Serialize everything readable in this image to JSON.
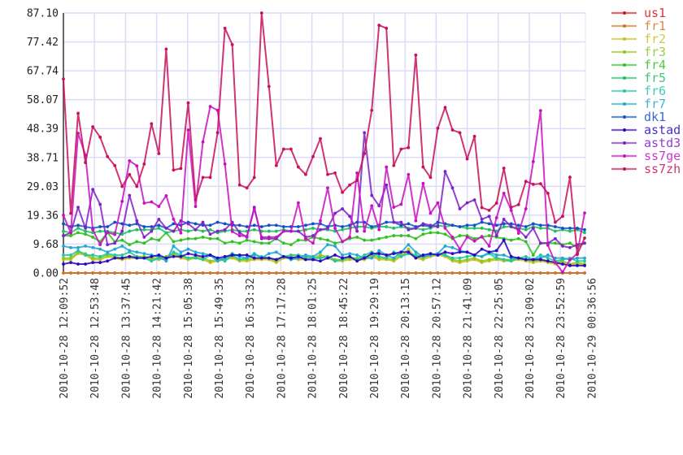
{
  "chart_data": {
    "type": "line",
    "title": "",
    "xlabel": "",
    "ylabel": "",
    "ylim": [
      0,
      87.1
    ],
    "y_ticks": [
      "0.00",
      "9.68",
      "19.36",
      "29.03",
      "38.71",
      "48.39",
      "58.07",
      "67.74",
      "77.42",
      "87.10"
    ],
    "x_tick_labels": [
      "2010-10-28 12:09:52",
      "2010-10-28 12:53:48",
      "2010-10-28 13:37:45",
      "2010-10-28 14:21:42",
      "2010-10-28 15:05:38",
      "2010-10-28 15:49:35",
      "2010-10-28 16:33:32",
      "2010-10-28 17:17:28",
      "2010-10-28 18:01:25",
      "2010-10-28 18:45:22",
      "2010-10-28 19:29:19",
      "2010-10-28 20:13:15",
      "2010-10-28 20:57:12",
      "2010-10-28 21:41:09",
      "2010-10-28 22:25:05",
      "2010-10-28 23:09:02",
      "2010-10-28 23:52:59",
      "2010-10-29 00:36:56"
    ],
    "grid": true,
    "legend_position": "right",
    "series": [
      {
        "name": "us1",
        "color": "#d01818",
        "values": [
          0,
          0,
          0,
          0,
          0,
          0,
          0,
          0,
          0,
          0,
          0,
          0,
          0,
          0,
          0,
          0,
          0,
          0,
          0,
          0,
          0,
          0,
          0,
          0,
          0,
          0,
          0,
          0,
          0,
          0,
          0,
          0,
          0,
          0,
          0,
          0,
          0,
          0,
          0,
          0,
          0,
          0,
          0,
          0,
          0,
          0,
          0,
          0,
          0,
          0,
          0,
          0,
          0,
          0,
          0,
          0,
          0,
          0,
          0,
          0,
          0,
          0,
          0,
          0,
          0,
          0,
          0,
          0,
          0,
          0,
          0,
          0
        ]
      },
      {
        "name": "fr1",
        "color": "#d07828",
        "values": [
          0,
          0,
          0,
          0,
          0,
          0,
          0,
          0,
          0,
          0,
          0,
          0,
          0,
          0,
          0,
          0,
          0,
          0,
          0,
          0,
          0,
          0,
          0,
          0,
          0,
          0,
          0,
          0,
          0,
          0,
          0,
          0,
          0,
          0,
          0,
          0,
          0,
          0,
          0,
          0,
          0,
          0,
          0,
          0,
          0,
          0,
          0,
          0,
          0,
          0,
          0,
          0,
          0,
          0,
          0,
          0,
          0,
          0,
          0,
          0,
          0,
          0,
          0,
          0,
          0,
          0,
          0,
          0,
          0,
          0,
          0,
          0
        ]
      },
      {
        "name": "fr2",
        "color": "#c8c020",
        "values": [
          4.5,
          4.5,
          6.5,
          6,
          4.5,
          4.5,
          5.5,
          5,
          4.5,
          5,
          5,
          5,
          4.5,
          4.5,
          5,
          6,
          5,
          4.5,
          5,
          4.5,
          3.5,
          4,
          4.5,
          5,
          4,
          4,
          4.5,
          4.5,
          4.5,
          3.5,
          5,
          5,
          4.5,
          4.5,
          4.5,
          5.5,
          5,
          4,
          4,
          4.5,
          4.5,
          4.5,
          5.5,
          4.5,
          4.5,
          4,
          5.5,
          8,
          5,
          4.5,
          5.5,
          6,
          5.5,
          4,
          3.5,
          4,
          4.5,
          3.5,
          4,
          4.5,
          4,
          4,
          4.5,
          4,
          3.5,
          4,
          3.5,
          3,
          3.5,
          2.5,
          3,
          2.5
        ]
      },
      {
        "name": "fr3",
        "color": "#88c820",
        "values": [
          5,
          5,
          7,
          6.5,
          5,
          5,
          6,
          5.5,
          5,
          5.5,
          5.5,
          5.5,
          5,
          5,
          5.5,
          6.5,
          5.5,
          5,
          5.5,
          5,
          4,
          4.5,
          5,
          5.5,
          4.5,
          4.5,
          5,
          5,
          5,
          4,
          5.5,
          5.5,
          5,
          5,
          5,
          6,
          5.5,
          4.5,
          4.5,
          5,
          5,
          5,
          6,
          5,
          5,
          4.5,
          6,
          6.5,
          5.5,
          5,
          6,
          6.5,
          6,
          4.5,
          4,
          4.5,
          5,
          4,
          4.5,
          5,
          4.5,
          4.5,
          5,
          4.5,
          4,
          4.5,
          4,
          3.5,
          4,
          3,
          3.5,
          3
        ]
      },
      {
        "name": "fr4",
        "color": "#30c020",
        "values": [
          12.5,
          12.5,
          13.5,
          13,
          12,
          10.5,
          13.5,
          10.5,
          11,
          9.5,
          10.5,
          10,
          11.5,
          11,
          13.5,
          10.5,
          11,
          11.5,
          11.5,
          12,
          11.5,
          11.5,
          10,
          10.5,
          10,
          11,
          10.5,
          10,
          10,
          11.5,
          10,
          9.5,
          11,
          11,
          12,
          11.5,
          11,
          10,
          10.5,
          11.5,
          12,
          11,
          11,
          11.5,
          12,
          12.5,
          12.5,
          12.5,
          11.5,
          13,
          13.5,
          13.5,
          13,
          11.5,
          12.5,
          12.5,
          11.5,
          12,
          12.5,
          12,
          11.5,
          11,
          11.5,
          10.5,
          6,
          10,
          10,
          10,
          9.5,
          10,
          8.5,
          10
        ]
      },
      {
        "name": "fr5",
        "color": "#20c060",
        "values": [
          14,
          13.5,
          15,
          14,
          13.5,
          14,
          14,
          13.5,
          13,
          14,
          14.5,
          14.5,
          14.5,
          15,
          13.5,
          14,
          14.5,
          14,
          14.5,
          14,
          14.5,
          13.5,
          14,
          14.5,
          14,
          14,
          14.5,
          14,
          14,
          14,
          14.5,
          14,
          14,
          14.5,
          15,
          14.5,
          14.5,
          14,
          14.5,
          15,
          15.5,
          15.5,
          15,
          15.5,
          15.5,
          15,
          15.5,
          15,
          15,
          14.5,
          15,
          16,
          15.5,
          16,
          15.5,
          15,
          15,
          15,
          14.5,
          14,
          15.5,
          15.5,
          15,
          14.5,
          15.5,
          15,
          15,
          14,
          14.5,
          14,
          14.5,
          13.5
        ]
      },
      {
        "name": "fr6",
        "color": "#20c8a0",
        "values": [
          6,
          6,
          7.5,
          6,
          6,
          5.5,
          6.5,
          6,
          6,
          7,
          5.5,
          5,
          4,
          5,
          4.5,
          7,
          6,
          5,
          5,
          4.5,
          6,
          5,
          4,
          6,
          4.5,
          5,
          6,
          5.5,
          5,
          4.5,
          5.5,
          6,
          6,
          5.5,
          5,
          5,
          5.5,
          4,
          4.5,
          5.5,
          4.5,
          6,
          7,
          5.5,
          5,
          7,
          5.5,
          6.5,
          6,
          5.5,
          6,
          6.5,
          6,
          5,
          5,
          5.5,
          6,
          5.5,
          6.5,
          5,
          4.5,
          4,
          5,
          5.5,
          4.5,
          6,
          5,
          4,
          4.5,
          5,
          4,
          4
        ]
      },
      {
        "name": "fr7",
        "color": "#20a8d0",
        "values": [
          9,
          8.5,
          8.5,
          9,
          8.5,
          8,
          7,
          8,
          9,
          7.5,
          7,
          6.5,
          6,
          5.5,
          4,
          9,
          7,
          8,
          7,
          6.5,
          6,
          4,
          5,
          6.5,
          5.5,
          5,
          6.5,
          5,
          6.5,
          7,
          5.5,
          4.5,
          5,
          6,
          5.5,
          7,
          9.5,
          9,
          6,
          6.5,
          6,
          5,
          5,
          7.5,
          6,
          5,
          7,
          9.5,
          7,
          5.5,
          6,
          6.5,
          9,
          8.5,
          7.5,
          7,
          6,
          5.5,
          7,
          6,
          6,
          5,
          5,
          4.5,
          4.5,
          5,
          6,
          5,
          5,
          4.5,
          5,
          5
        ]
      },
      {
        "name": "dk1",
        "color": "#1050c8",
        "values": [
          16.5,
          15.5,
          16,
          15.5,
          15,
          15.5,
          15.5,
          17,
          16.5,
          16,
          16.5,
          15.5,
          15.5,
          16,
          15,
          16.5,
          16,
          17,
          16.5,
          16,
          16,
          17,
          16.5,
          16,
          16,
          15.5,
          16,
          15.5,
          16,
          16,
          15.5,
          15.5,
          15.5,
          16,
          16.5,
          16.5,
          15.5,
          16,
          15.5,
          16,
          17,
          17,
          15.5,
          16,
          17,
          17,
          16,
          16.5,
          15.5,
          16,
          15.5,
          17,
          16.5,
          16,
          15.5,
          16,
          16,
          17,
          16.5,
          16,
          16.5,
          16.5,
          16,
          15.5,
          16.5,
          16,
          16,
          15.5,
          15,
          15,
          15,
          14.5
        ]
      },
      {
        "name": "astad",
        "color": "#2808c0",
        "values": [
          3,
          3.5,
          3,
          3,
          3.5,
          3.5,
          4,
          5,
          5,
          5.5,
          5,
          5,
          5.5,
          6,
          5,
          5.5,
          5.5,
          6.5,
          6,
          5.5,
          6,
          5,
          5.5,
          6,
          6,
          6,
          5,
          5,
          5,
          4.5,
          5.5,
          5,
          5.5,
          4.5,
          4.5,
          4,
          5,
          6,
          5,
          5.5,
          4,
          5,
          6.5,
          6.5,
          6,
          6.5,
          7,
          7,
          5,
          6,
          6.5,
          6,
          7,
          6.5,
          7,
          7,
          6,
          8,
          7,
          7.5,
          11,
          5.5,
          5,
          4.5,
          4.5,
          4.5,
          4,
          3.5,
          3,
          2.5,
          2.5,
          2.5
        ]
      },
      {
        "name": "astd3",
        "color": "#8020c8",
        "values": [
          12.5,
          13.5,
          22,
          15,
          28,
          23,
          9.5,
          10,
          14,
          26,
          17.5,
          12,
          14,
          18,
          15,
          14,
          17.5,
          16.5,
          14.5,
          17,
          13,
          14,
          14.5,
          17,
          13.5,
          12,
          22,
          11.5,
          11.5,
          11.5,
          14,
          14,
          14,
          12,
          12.5,
          14.5,
          15,
          20,
          21.5,
          19,
          14,
          47,
          26,
          22.5,
          29.5,
          17,
          17,
          14.5,
          15,
          16.5,
          16,
          15.5,
          34,
          28.5,
          21.5,
          23.5,
          24.5,
          18,
          19,
          12.5,
          18,
          15.5,
          14.5,
          12,
          15,
          10,
          10,
          11.5,
          9,
          8.5,
          9.5,
          10
        ]
      },
      {
        "name": "ss7ge",
        "color": "#c810c0",
        "values": [
          19.4,
          13.4,
          46.8,
          39.5,
          14.5,
          9.5,
          13.6,
          12.9,
          24,
          37.6,
          35.9,
          23.4,
          23.8,
          22.3,
          25.9,
          18,
          13.4,
          47.9,
          22.3,
          43.9,
          55.8,
          54.5,
          36.5,
          13.9,
          12.5,
          12.3,
          21.5,
          12,
          12,
          12,
          14,
          14,
          23.5,
          11.5,
          10,
          17.5,
          28.5,
          15,
          10.5,
          12,
          33.5,
          14,
          22.5,
          14.5,
          35.5,
          22,
          23,
          33,
          17.5,
          30,
          20,
          23.5,
          15,
          12,
          8,
          12,
          10.7,
          12.2,
          9,
          18.5,
          26.7,
          21,
          13.3,
          21.5,
          37.3,
          54.4,
          9.3,
          3.5,
          0.3,
          4.4,
          6.5,
          20.1
        ]
      },
      {
        "name": "ss7zh",
        "color": "#c8105c",
        "values": [
          65,
          20,
          53.5,
          37,
          49,
          45.5,
          39,
          36,
          29,
          33,
          29,
          36.5,
          50,
          40,
          75,
          34.5,
          35,
          57,
          24.5,
          32,
          32,
          47,
          82,
          76.5,
          29.5,
          28.5,
          32,
          87.1,
          62.5,
          36,
          41.5,
          41.5,
          35.5,
          33,
          39,
          45,
          33,
          33.5,
          27,
          29.5,
          31,
          40,
          54.5,
          83,
          82,
          36,
          41.5,
          42,
          73,
          35.5,
          32,
          48.5,
          55.5,
          47.9,
          47,
          38.2,
          45.8,
          21.9,
          21,
          23.4,
          35.1,
          22,
          22.9,
          30.7,
          29.7,
          29.9,
          26.7,
          17,
          19,
          32.1,
          6.2,
          11.7
        ]
      }
    ]
  }
}
